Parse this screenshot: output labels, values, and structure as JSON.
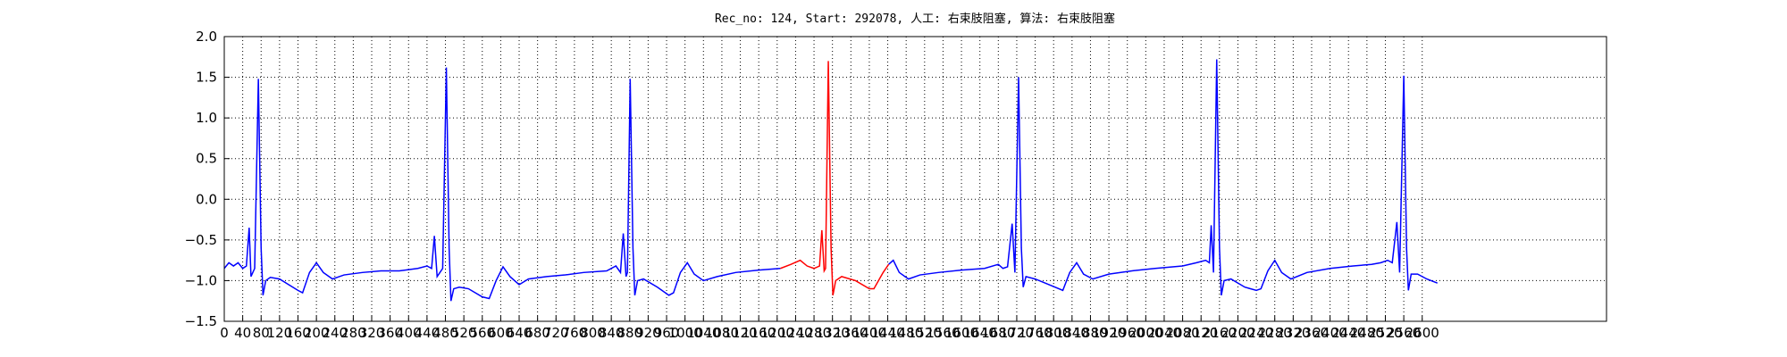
{
  "chart_data": {
    "type": "line",
    "title": "Rec_no: 124, Start: 292078, 人工: 右束肢阻塞, 算法: 右束肢阻塞",
    "xlim": [
      0,
      3000
    ],
    "ylim": [
      -1.5,
      2.0
    ],
    "xticks": [
      0,
      40,
      80,
      120,
      160,
      200,
      240,
      280,
      320,
      360,
      400,
      440,
      480,
      520,
      560,
      600,
      640,
      680,
      720,
      760,
      800,
      840,
      880,
      920,
      960,
      1000,
      1040,
      1080,
      1120,
      1160,
      1200,
      1240,
      1280,
      1320,
      1360,
      1400,
      1440,
      1480,
      1520,
      1560,
      1600,
      1640,
      1680,
      1720,
      1760,
      1800,
      1840,
      1880,
      1920,
      1960,
      2000,
      2040,
      2080,
      2120,
      2160,
      2200,
      2240,
      2280,
      2320,
      2360,
      2400,
      2440,
      2480,
      2520,
      2560,
      2600
    ],
    "yticks": [
      {
        "value": -1.5,
        "label": "−1.5"
      },
      {
        "value": -1.0,
        "label": "−1.0"
      },
      {
        "value": -0.5,
        "label": "−0.5"
      },
      {
        "value": 0,
        "label": "0.0"
      },
      0.5,
      {
        "value": 1.0,
        "label": "1.0"
      },
      1.5,
      {
        "value": 2.0,
        "label": "2.0"
      }
    ],
    "grid": true,
    "series": [
      {
        "color": "#0000ff",
        "x": [
          0,
          10,
          20,
          30,
          40,
          48,
          54,
          58,
          66,
          74,
          80,
          84,
          90,
          100,
          120,
          140,
          160,
          170,
          185,
          200,
          215,
          235,
          260,
          300,
          340,
          380,
          420,
          440,
          450,
          456,
          462,
          474,
          482,
          488,
          492,
          498,
          510,
          530,
          560,
          575,
          590,
          605,
          620,
          640,
          660,
          700,
          740,
          780,
          830,
          850,
          860,
          866,
          872,
          875,
          881,
          887,
          891,
          897,
          910,
          940,
          965,
          975,
          990,
          1005,
          1020,
          1040,
          1070,
          1110,
          1160,
          1207,
          1300,
          1442,
          1452,
          1465,
          1485,
          1510,
          1550,
          1600,
          1650,
          1680,
          1690,
          1700,
          1710,
          1716,
          1724,
          1730,
          1734,
          1740,
          1760,
          1790,
          1820,
          1835,
          1850,
          1865,
          1885,
          1920,
          1970,
          2020,
          2080,
          2110,
          2130,
          2138,
          2142,
          2147,
          2154,
          2160,
          2164,
          2170,
          2185,
          2215,
          2240,
          2250,
          2265,
          2280,
          2295,
          2315,
          2350,
          2400,
          2450,
          2490,
          2510,
          2525,
          2535,
          2545,
          2551,
          2560,
          2566,
          2570,
          2576,
          2590,
          2610,
          2633
        ],
        "values": [
          -0.85,
          -0.78,
          -0.82,
          -0.78,
          -0.85,
          -0.82,
          -0.35,
          -0.95,
          -0.85,
          1.48,
          -0.6,
          -1.18,
          -1.0,
          -0.96,
          -0.98,
          -1.05,
          -1.12,
          -1.15,
          -0.9,
          -0.78,
          -0.9,
          -0.98,
          -0.93,
          -0.9,
          -0.88,
          -0.88,
          -0.85,
          -0.82,
          -0.85,
          -0.45,
          -0.95,
          -0.85,
          1.62,
          -0.6,
          -1.25,
          -1.1,
          -1.08,
          -1.1,
          -1.2,
          -1.22,
          -1.0,
          -0.83,
          -0.95,
          -1.05,
          -0.98,
          -0.95,
          -0.93,
          -0.9,
          -0.88,
          -0.82,
          -0.9,
          -0.42,
          -0.95,
          -0.9,
          1.48,
          -0.6,
          -1.18,
          -1.0,
          -0.98,
          -1.08,
          -1.18,
          -1.15,
          -0.9,
          -0.78,
          -0.92,
          -1.0,
          -0.95,
          -0.9,
          -0.87,
          -0.85,
          null,
          -0.8,
          -0.75,
          -0.9,
          -0.98,
          -0.93,
          -0.9,
          -0.87,
          -0.85,
          -0.8,
          -0.85,
          -0.83,
          -0.3,
          -0.9,
          1.5,
          -0.6,
          -1.08,
          -0.95,
          -0.98,
          -1.05,
          -1.12,
          -0.9,
          -0.78,
          -0.92,
          -0.98,
          -0.92,
          -0.88,
          -0.85,
          -0.82,
          -0.78,
          -0.75,
          -0.78,
          -0.32,
          -0.9,
          1.72,
          -0.6,
          -1.18,
          -1.0,
          -0.98,
          -1.08,
          -1.12,
          -1.1,
          -0.88,
          -0.75,
          -0.9,
          -0.98,
          -0.9,
          -0.85,
          -0.82,
          -0.8,
          -0.78,
          -0.75,
          -0.78,
          -0.28,
          -0.9,
          1.52,
          -0.6,
          -1.12,
          -0.92,
          -0.92,
          -0.98,
          -1.03
        ]
      },
      {
        "color": "#ff0000",
        "x": [
          1207,
          1230,
          1250,
          1265,
          1280,
          1292,
          1297,
          1302,
          1305,
          1311,
          1317,
          1321,
          1327,
          1340,
          1370,
          1400,
          1410,
          1430,
          1442
        ],
        "values": [
          -0.85,
          -0.8,
          -0.75,
          -0.82,
          -0.85,
          -0.82,
          -0.38,
          -0.88,
          -0.85,
          1.7,
          -0.6,
          -1.18,
          -1.0,
          -0.95,
          -1.0,
          -1.1,
          -1.1,
          -0.9,
          -0.8
        ]
      }
    ]
  }
}
